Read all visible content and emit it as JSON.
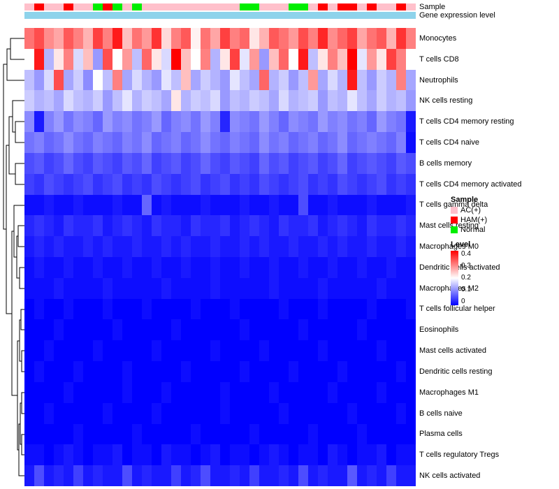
{
  "chart_data": {
    "type": "heatmap",
    "title": "",
    "xlabel": "",
    "ylabel": "",
    "grid": false,
    "legend_position": "right",
    "rows": [
      "Monocytes",
      "T cells CD8",
      "Neutrophils",
      "NK cells resting",
      "T cells CD4 memory resting",
      "T cells CD4 naive",
      "B cells memory",
      "T cells CD4 memory activated",
      "T cells gamma delta",
      "Mast cells resting",
      "Macrophages M0",
      "Dendritic cells activated",
      "Macrophages M2",
      "T cells follicular helper",
      "Eosinophils",
      "Mast cells activated",
      "Dendritic cells resting",
      "Macrophages M1",
      "B cells naive",
      "Plasma cells",
      "T cells regulatory  Tregs",
      "NK cells activated"
    ],
    "n_columns": 40,
    "column_labels": [],
    "scale": {
      "min": 0,
      "max": 0.4,
      "low_color": "#0000FF",
      "mid_color": "#FFFFFF",
      "high_color": "#FF0000"
    },
    "matrix": [
      [
        0.31,
        0.34,
        0.29,
        0.27,
        0.33,
        0.3,
        0.26,
        0.35,
        0.3,
        0.38,
        0.25,
        0.31,
        0.28,
        0.36,
        0.23,
        0.3,
        0.33,
        0.21,
        0.31,
        0.27,
        0.35,
        0.3,
        0.32,
        0.22,
        0.26,
        0.33,
        0.31,
        0.28,
        0.34,
        0.3,
        0.37,
        0.29,
        0.32,
        0.35,
        0.27,
        0.31,
        0.33,
        0.26,
        0.36,
        0.3
      ],
      [
        0.2,
        0.38,
        0.14,
        0.22,
        0.3,
        0.17,
        0.25,
        0.12,
        0.34,
        0.2,
        0.28,
        0.15,
        0.32,
        0.22,
        0.17,
        0.4,
        0.25,
        0.2,
        0.3,
        0.14,
        0.22,
        0.35,
        0.18,
        0.28,
        0.12,
        0.25,
        0.32,
        0.2,
        0.38,
        0.15,
        0.22,
        0.3,
        0.25,
        0.4,
        0.18,
        0.28,
        0.22,
        0.35,
        0.3,
        0.2
      ],
      [
        0.15,
        0.12,
        0.17,
        0.34,
        0.13,
        0.16,
        0.11,
        0.2,
        0.15,
        0.3,
        0.13,
        0.17,
        0.14,
        0.12,
        0.18,
        0.15,
        0.25,
        0.13,
        0.16,
        0.14,
        0.12,
        0.18,
        0.15,
        0.13,
        0.32,
        0.14,
        0.16,
        0.12,
        0.15,
        0.28,
        0.13,
        0.17,
        0.14,
        0.38,
        0.15,
        0.12,
        0.16,
        0.14,
        0.3,
        0.13
      ],
      [
        0.16,
        0.14,
        0.15,
        0.13,
        0.17,
        0.15,
        0.14,
        0.16,
        0.12,
        0.15,
        0.18,
        0.14,
        0.16,
        0.15,
        0.13,
        0.22,
        0.14,
        0.16,
        0.15,
        0.17,
        0.12,
        0.15,
        0.14,
        0.16,
        0.15,
        0.13,
        0.17,
        0.14,
        0.15,
        0.16,
        0.12,
        0.15,
        0.14,
        0.18,
        0.15,
        0.13,
        0.16,
        0.14,
        0.15,
        0.12
      ],
      [
        0.11,
        0.02,
        0.1,
        0.12,
        0.09,
        0.11,
        0.1,
        0.08,
        0.12,
        0.1,
        0.11,
        0.09,
        0.1,
        0.12,
        0.08,
        0.1,
        0.11,
        0.09,
        0.12,
        0.1,
        0.03,
        0.11,
        0.1,
        0.09,
        0.12,
        0.1,
        0.08,
        0.11,
        0.1,
        0.09,
        0.12,
        0.1,
        0.11,
        0.09,
        0.1,
        0.08,
        0.12,
        0.1,
        0.09,
        0.02
      ],
      [
        0.09,
        0.1,
        0.08,
        0.09,
        0.11,
        0.09,
        0.08,
        0.1,
        0.09,
        0.08,
        0.1,
        0.09,
        0.11,
        0.08,
        0.09,
        0.1,
        0.08,
        0.09,
        0.11,
        0.09,
        0.08,
        0.1,
        0.09,
        0.08,
        0.11,
        0.09,
        0.1,
        0.08,
        0.09,
        0.1,
        0.08,
        0.09,
        0.11,
        0.08,
        0.09,
        0.1,
        0.09,
        0.08,
        0.1,
        0.01
      ],
      [
        0.06,
        0.07,
        0.05,
        0.06,
        0.08,
        0.06,
        0.05,
        0.07,
        0.06,
        0.05,
        0.07,
        0.06,
        0.08,
        0.05,
        0.06,
        0.07,
        0.05,
        0.06,
        0.08,
        0.06,
        0.05,
        0.07,
        0.06,
        0.05,
        0.08,
        0.06,
        0.07,
        0.05,
        0.06,
        0.07,
        0.05,
        0.06,
        0.08,
        0.05,
        0.06,
        0.07,
        0.06,
        0.05,
        0.07,
        0.06
      ],
      [
        0.05,
        0.04,
        0.06,
        0.05,
        0.04,
        0.05,
        0.06,
        0.04,
        0.05,
        0.06,
        0.04,
        0.05,
        0.04,
        0.06,
        0.05,
        0.04,
        0.05,
        0.06,
        0.04,
        0.05,
        0.06,
        0.04,
        0.05,
        0.04,
        0.06,
        0.05,
        0.04,
        0.05,
        0.06,
        0.04,
        0.05,
        0.04,
        0.06,
        0.05,
        0.04,
        0.05,
        0.06,
        0.04,
        0.05,
        0.04
      ],
      [
        0.01,
        0.01,
        0.02,
        0.01,
        0.01,
        0.02,
        0.01,
        0.01,
        0.01,
        0.02,
        0.01,
        0.01,
        0.08,
        0.01,
        0.02,
        0.01,
        0.01,
        0.01,
        0.02,
        0.01,
        0.01,
        0.01,
        0.02,
        0.01,
        0.01,
        0.02,
        0.01,
        0.01,
        0.06,
        0.01,
        0.01,
        0.02,
        0.01,
        0.01,
        0.01,
        0.02,
        0.01,
        0.01,
        0.01,
        0.02
      ],
      [
        0.03,
        0.04,
        0.03,
        0.02,
        0.04,
        0.03,
        0.03,
        0.04,
        0.02,
        0.03,
        0.04,
        0.03,
        0.02,
        0.04,
        0.03,
        0.03,
        0.02,
        0.04,
        0.03,
        0.03,
        0.04,
        0.02,
        0.03,
        0.04,
        0.03,
        0.02,
        0.04,
        0.03,
        0.03,
        0.04,
        0.02,
        0.03,
        0.04,
        0.03,
        0.02,
        0.04,
        0.03,
        0.03,
        0.04,
        0.03
      ],
      [
        0.02,
        0.03,
        0.02,
        0.03,
        0.02,
        0.02,
        0.03,
        0.02,
        0.03,
        0.02,
        0.02,
        0.03,
        0.02,
        0.02,
        0.03,
        0.02,
        0.03,
        0.02,
        0.02,
        0.03,
        0.02,
        0.02,
        0.03,
        0.02,
        0.03,
        0.02,
        0.02,
        0.03,
        0.02,
        0.02,
        0.03,
        0.02,
        0.03,
        0.02,
        0.02,
        0.03,
        0.02,
        0.02,
        0.03,
        0.02
      ],
      [
        0.01,
        0.02,
        0.01,
        0.01,
        0.02,
        0.01,
        0.01,
        0.02,
        0.01,
        0.01,
        0.02,
        0.01,
        0.01,
        0.02,
        0.01,
        0.01,
        0.02,
        0.01,
        0.01,
        0.02,
        0.01,
        0.01,
        0.02,
        0.01,
        0.01,
        0.02,
        0.01,
        0.01,
        0.02,
        0.01,
        0.01,
        0.02,
        0.01,
        0.01,
        0.02,
        0.01,
        0.01,
        0.02,
        0.01,
        0.01
      ],
      [
        0.01,
        0.01,
        0.01,
        0.02,
        0.01,
        0.01,
        0.01,
        0.01,
        0.02,
        0.01,
        0.01,
        0.01,
        0.01,
        0.01,
        0.02,
        0.01,
        0.01,
        0.01,
        0.01,
        0.02,
        0.01,
        0.01,
        0.01,
        0.01,
        0.01,
        0.02,
        0.01,
        0.01,
        0.01,
        0.01,
        0.02,
        0.01,
        0.01,
        0.01,
        0.01,
        0.01,
        0.02,
        0.01,
        0.01,
        0.01
      ],
      [
        0,
        0.01,
        0,
        0,
        0.01,
        0,
        0,
        0,
        0.01,
        0,
        0,
        0,
        0.01,
        0,
        0,
        0,
        0,
        0.01,
        0,
        0,
        0,
        0.01,
        0,
        0,
        0,
        0,
        0.01,
        0,
        0,
        0,
        0.01,
        0,
        0,
        0,
        0,
        0.01,
        0,
        0,
        0,
        0.01
      ],
      [
        0,
        0,
        0,
        0.01,
        0,
        0,
        0,
        0,
        0,
        0.01,
        0,
        0,
        0,
        0,
        0,
        0.01,
        0,
        0,
        0,
        0,
        0,
        0,
        0.01,
        0,
        0,
        0,
        0,
        0,
        0.01,
        0,
        0,
        0,
        0,
        0,
        0.01,
        0,
        0,
        0,
        0,
        0
      ],
      [
        0,
        0,
        0.01,
        0,
        0,
        0,
        0,
        0.01,
        0,
        0,
        0,
        0,
        0,
        0.01,
        0,
        0,
        0,
        0,
        0,
        0.01,
        0,
        0,
        0,
        0,
        0.01,
        0,
        0,
        0,
        0,
        0,
        0.01,
        0,
        0,
        0,
        0,
        0,
        0.01,
        0,
        0,
        0
      ],
      [
        0,
        0.01,
        0,
        0,
        0,
        0.01,
        0,
        0,
        0,
        0,
        0.01,
        0,
        0,
        0,
        0,
        0,
        0.01,
        0,
        0,
        0,
        0,
        0,
        0.01,
        0,
        0,
        0,
        0,
        0.01,
        0,
        0,
        0,
        0,
        0.01,
        0,
        0,
        0,
        0,
        0,
        0.01,
        0
      ],
      [
        0,
        0,
        0,
        0,
        0.01,
        0,
        0,
        0,
        0,
        0,
        0.01,
        0,
        0,
        0,
        0.01,
        0,
        0,
        0,
        0,
        0,
        0.01,
        0,
        0,
        0,
        0,
        0.01,
        0,
        0,
        0,
        0,
        0,
        0.01,
        0,
        0,
        0,
        0,
        0.01,
        0,
        0,
        0
      ],
      [
        0,
        0,
        0.01,
        0,
        0,
        0,
        0,
        0,
        0.01,
        0,
        0,
        0,
        0,
        0.01,
        0,
        0,
        0,
        0,
        0,
        0,
        0.01,
        0,
        0,
        0,
        0,
        0,
        0.01,
        0,
        0,
        0,
        0,
        0,
        0,
        0.01,
        0,
        0,
        0,
        0,
        0.01,
        0
      ],
      [
        0,
        0,
        0,
        0,
        0,
        0.01,
        0,
        0,
        0,
        0,
        0,
        0.01,
        0,
        0,
        0,
        0,
        0,
        0.01,
        0,
        0,
        0,
        0,
        0,
        0.01,
        0,
        0,
        0,
        0,
        0,
        0.01,
        0,
        0,
        0,
        0,
        0.01,
        0,
        0,
        0,
        0,
        0
      ],
      [
        0.01,
        0.01,
        0,
        0.01,
        0.02,
        0.01,
        0,
        0.01,
        0.01,
        0.02,
        0,
        0.01,
        0.01,
        0,
        0.02,
        0.01,
        0.01,
        0,
        0.01,
        0.02,
        0,
        0.01,
        0.01,
        0,
        0.01,
        0.02,
        0.01,
        0,
        0.01,
        0.01,
        0,
        0.02,
        0.01,
        0,
        0.01,
        0.01,
        0.02,
        0,
        0.01,
        0.01
      ],
      [
        0.02,
        0.06,
        0.02,
        0.03,
        0.02,
        0.05,
        0.02,
        0.03,
        0.02,
        0.02,
        0.06,
        0.02,
        0.03,
        0.02,
        0.02,
        0.05,
        0.02,
        0.03,
        0.06,
        0.02,
        0.02,
        0.03,
        0.02,
        0.05,
        0.02,
        0.02,
        0.03,
        0.02,
        0.06,
        0.02,
        0.03,
        0.02,
        0.02,
        0.07,
        0.02,
        0.03,
        0.02,
        0.05,
        0.02,
        0.02
      ]
    ],
    "column_annotation": {
      "sample": {
        "label": "Sample",
        "values": [
          "AC(+)",
          "HAM(+)",
          "AC(+)",
          "AC(+)",
          "HAM(+)",
          "AC(+)",
          "AC(+)",
          "Normal",
          "HAM(+)",
          "Normal",
          "AC(+)",
          "Normal",
          "AC(+)",
          "AC(+)",
          "AC(+)",
          "AC(+)",
          "AC(+)",
          "AC(+)",
          "AC(+)",
          "AC(+)",
          "AC(+)",
          "AC(+)",
          "Normal",
          "Normal",
          "AC(+)",
          "AC(+)",
          "AC(+)",
          "Normal",
          "Normal",
          "AC(+)",
          "HAM(+)",
          "AC(+)",
          "HAM(+)",
          "HAM(+)",
          "AC(+)",
          "HAM(+)",
          "AC(+)",
          "AC(+)",
          "HAM(+)",
          "AC(+)"
        ]
      },
      "gene_expression": {
        "label": "Gene expression level",
        "color": "#8ED3EB"
      }
    },
    "legend": {
      "sample": {
        "title": "Sample",
        "items": [
          {
            "label": "AC(+)",
            "color": "#FFC0CB"
          },
          {
            "label": "HAM(+)",
            "color": "#FF0000"
          },
          {
            "label": "Normal",
            "color": "#00EE00"
          }
        ]
      },
      "level": {
        "title": "Level",
        "ticks": [
          "0.4",
          "0.3",
          "0.2",
          "0.1",
          "0"
        ]
      }
    }
  }
}
